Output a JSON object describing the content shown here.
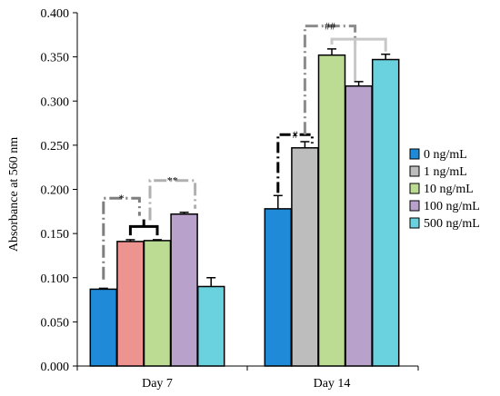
{
  "chart_data": {
    "type": "bar",
    "ylabel": "Absorbance at 560 nm",
    "ylim": [
      0,
      0.4
    ],
    "ytick_step": 0.05,
    "ytick_labels": [
      "0.000",
      "0.050",
      "0.100",
      "0.150",
      "0.200",
      "0.250",
      "0.300",
      "0.350",
      "0.400"
    ],
    "categories": [
      "Day 7",
      "Day 14"
    ],
    "series": [
      {
        "name": "0 ng/mL",
        "color": "#1f8ad8",
        "values": [
          0.087,
          0.178
        ],
        "errors": [
          0.001,
          0.015
        ]
      },
      {
        "name": "1 ng/mL",
        "color": "#bdbdbd",
        "values": [
          0.141,
          0.247
        ],
        "errors": [
          0.002,
          0.007
        ]
      },
      {
        "name": "10 ng/mL",
        "color": "#bcdb93",
        "values": [
          0.142,
          0.352
        ],
        "errors": [
          0.001,
          0.007
        ]
      },
      {
        "name": "100 ng/mL",
        "color": "#b8a2cc",
        "values": [
          0.172,
          0.317
        ],
        "errors": [
          0.002,
          0.005
        ]
      },
      {
        "name": "500 ng/mL",
        "color": "#6ad1de",
        "values": [
          0.09,
          0.347
        ],
        "errors": [
          0.01,
          0.006
        ]
      }
    ],
    "day7_bar_color_1ng": "#ed9390",
    "significance": [
      {
        "label": "*",
        "category": "Day 7",
        "color": "#7f7f7f"
      },
      {
        "label": "**",
        "category": "Day 7",
        "color": "#b0b0b0"
      },
      {
        "label": "#",
        "category": "Day 14",
        "color": "#000000"
      },
      {
        "label": "##",
        "category": "Day 14",
        "color": "#8c8c8c"
      }
    ],
    "legend_position": "right",
    "grid": false
  }
}
